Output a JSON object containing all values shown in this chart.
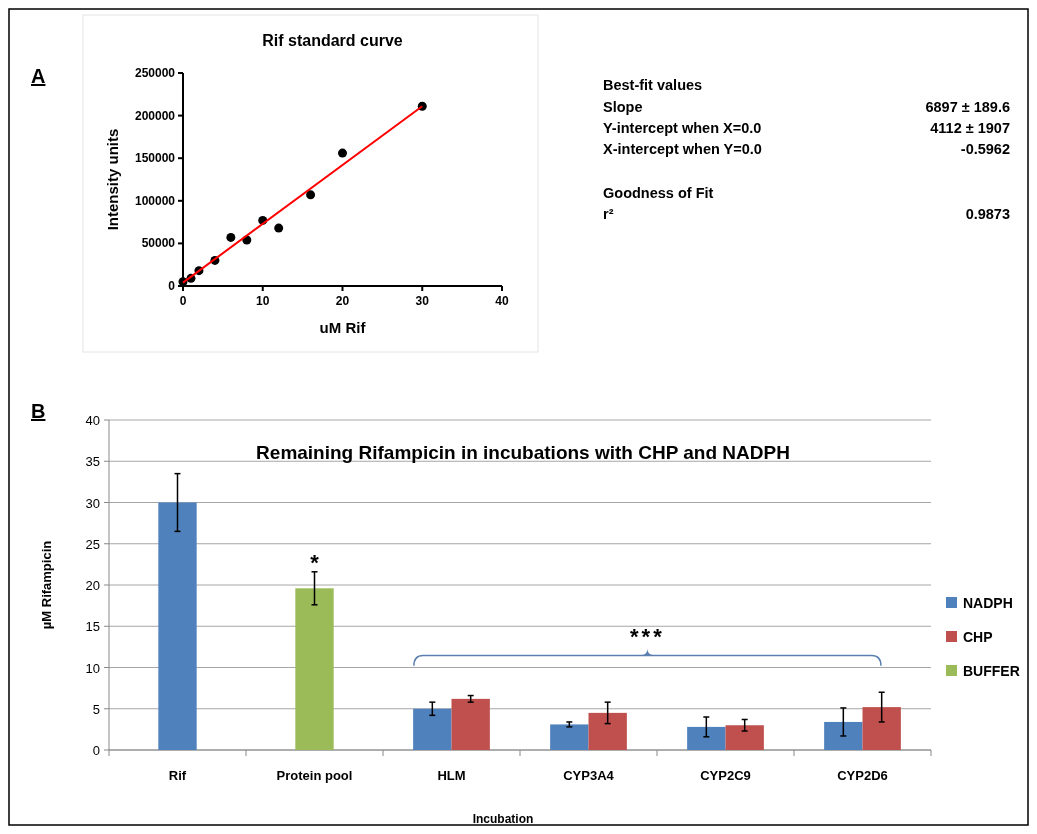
{
  "chart_data": [
    {
      "type": "scatter",
      "title": "Rif standard curve",
      "xlabel": "uM Rif",
      "ylabel": "Intensity units",
      "annotations": [
        "A"
      ],
      "xlim": [
        0,
        40
      ],
      "xticks": [
        0,
        10,
        20,
        30,
        40
      ],
      "ylim": [
        0,
        250000
      ],
      "yticks": [
        0,
        50000,
        100000,
        150000,
        200000,
        250000
      ],
      "marker": "circle",
      "series": [
        {
          "type": "scatter",
          "color": "#000000",
          "x": [
            0,
            1,
            2,
            4,
            6,
            8,
            10,
            12,
            16,
            20,
            30
          ],
          "values": [
            5000,
            9000,
            18000,
            30000,
            57000,
            54000,
            77000,
            68000,
            107000,
            156000,
            211000
          ]
        },
        {
          "type": "line",
          "color": "#ff0000",
          "x": [
            0,
            30
          ],
          "values": [
            4000,
            211000
          ],
          "line_style": "solid",
          "marker": "none"
        }
      ]
    },
    {
      "type": "other",
      "annotations": [
        "Best-fit values",
        "Slope",
        "6897 ± 189.6",
        "Y-intercept when X=0.0",
        "4112 ± 1907",
        "X-intercept when Y=0.0",
        "-0.5962",
        "Goodness of Fit",
        "r²",
        "0.9873"
      ]
    },
    {
      "type": "bar",
      "title": "Remaining Rifampicin in incubations with CHP and NADPH",
      "xlabel": "Incubation",
      "ylabel": "µM Rifampicin",
      "categories": [
        "Rif",
        "Protein pool",
        "HLM",
        "CYP3A4",
        "CYP2C9",
        "CYP2D6"
      ],
      "ylim": [
        0,
        40
      ],
      "yticks": [
        0,
        5,
        10,
        15,
        20,
        25,
        30,
        35,
        40
      ],
      "grid": "y",
      "legend": "right",
      "annotations": [
        "B",
        "*",
        "***"
      ],
      "series": [
        {
          "name": "NADPH",
          "color": "#4f81bd",
          "values": [
            30,
            null,
            5,
            3.1,
            2.8,
            3.4
          ],
          "errors": [
            3.5,
            null,
            0.8,
            0.3,
            1.2,
            1.7
          ]
        },
        {
          "name": "CHP",
          "color": "#c0504d",
          "values": [
            null,
            null,
            6.2,
            4.5,
            3,
            5.2
          ],
          "errors": [
            null,
            null,
            0.4,
            1.3,
            0.7,
            1.8
          ]
        },
        {
          "name": "BUFFER",
          "color": "#9bbb59",
          "values": [
            null,
            19.6,
            null,
            null,
            null,
            null
          ],
          "errors": [
            null,
            2,
            null,
            null,
            null,
            null
          ]
        }
      ]
    }
  ]
}
